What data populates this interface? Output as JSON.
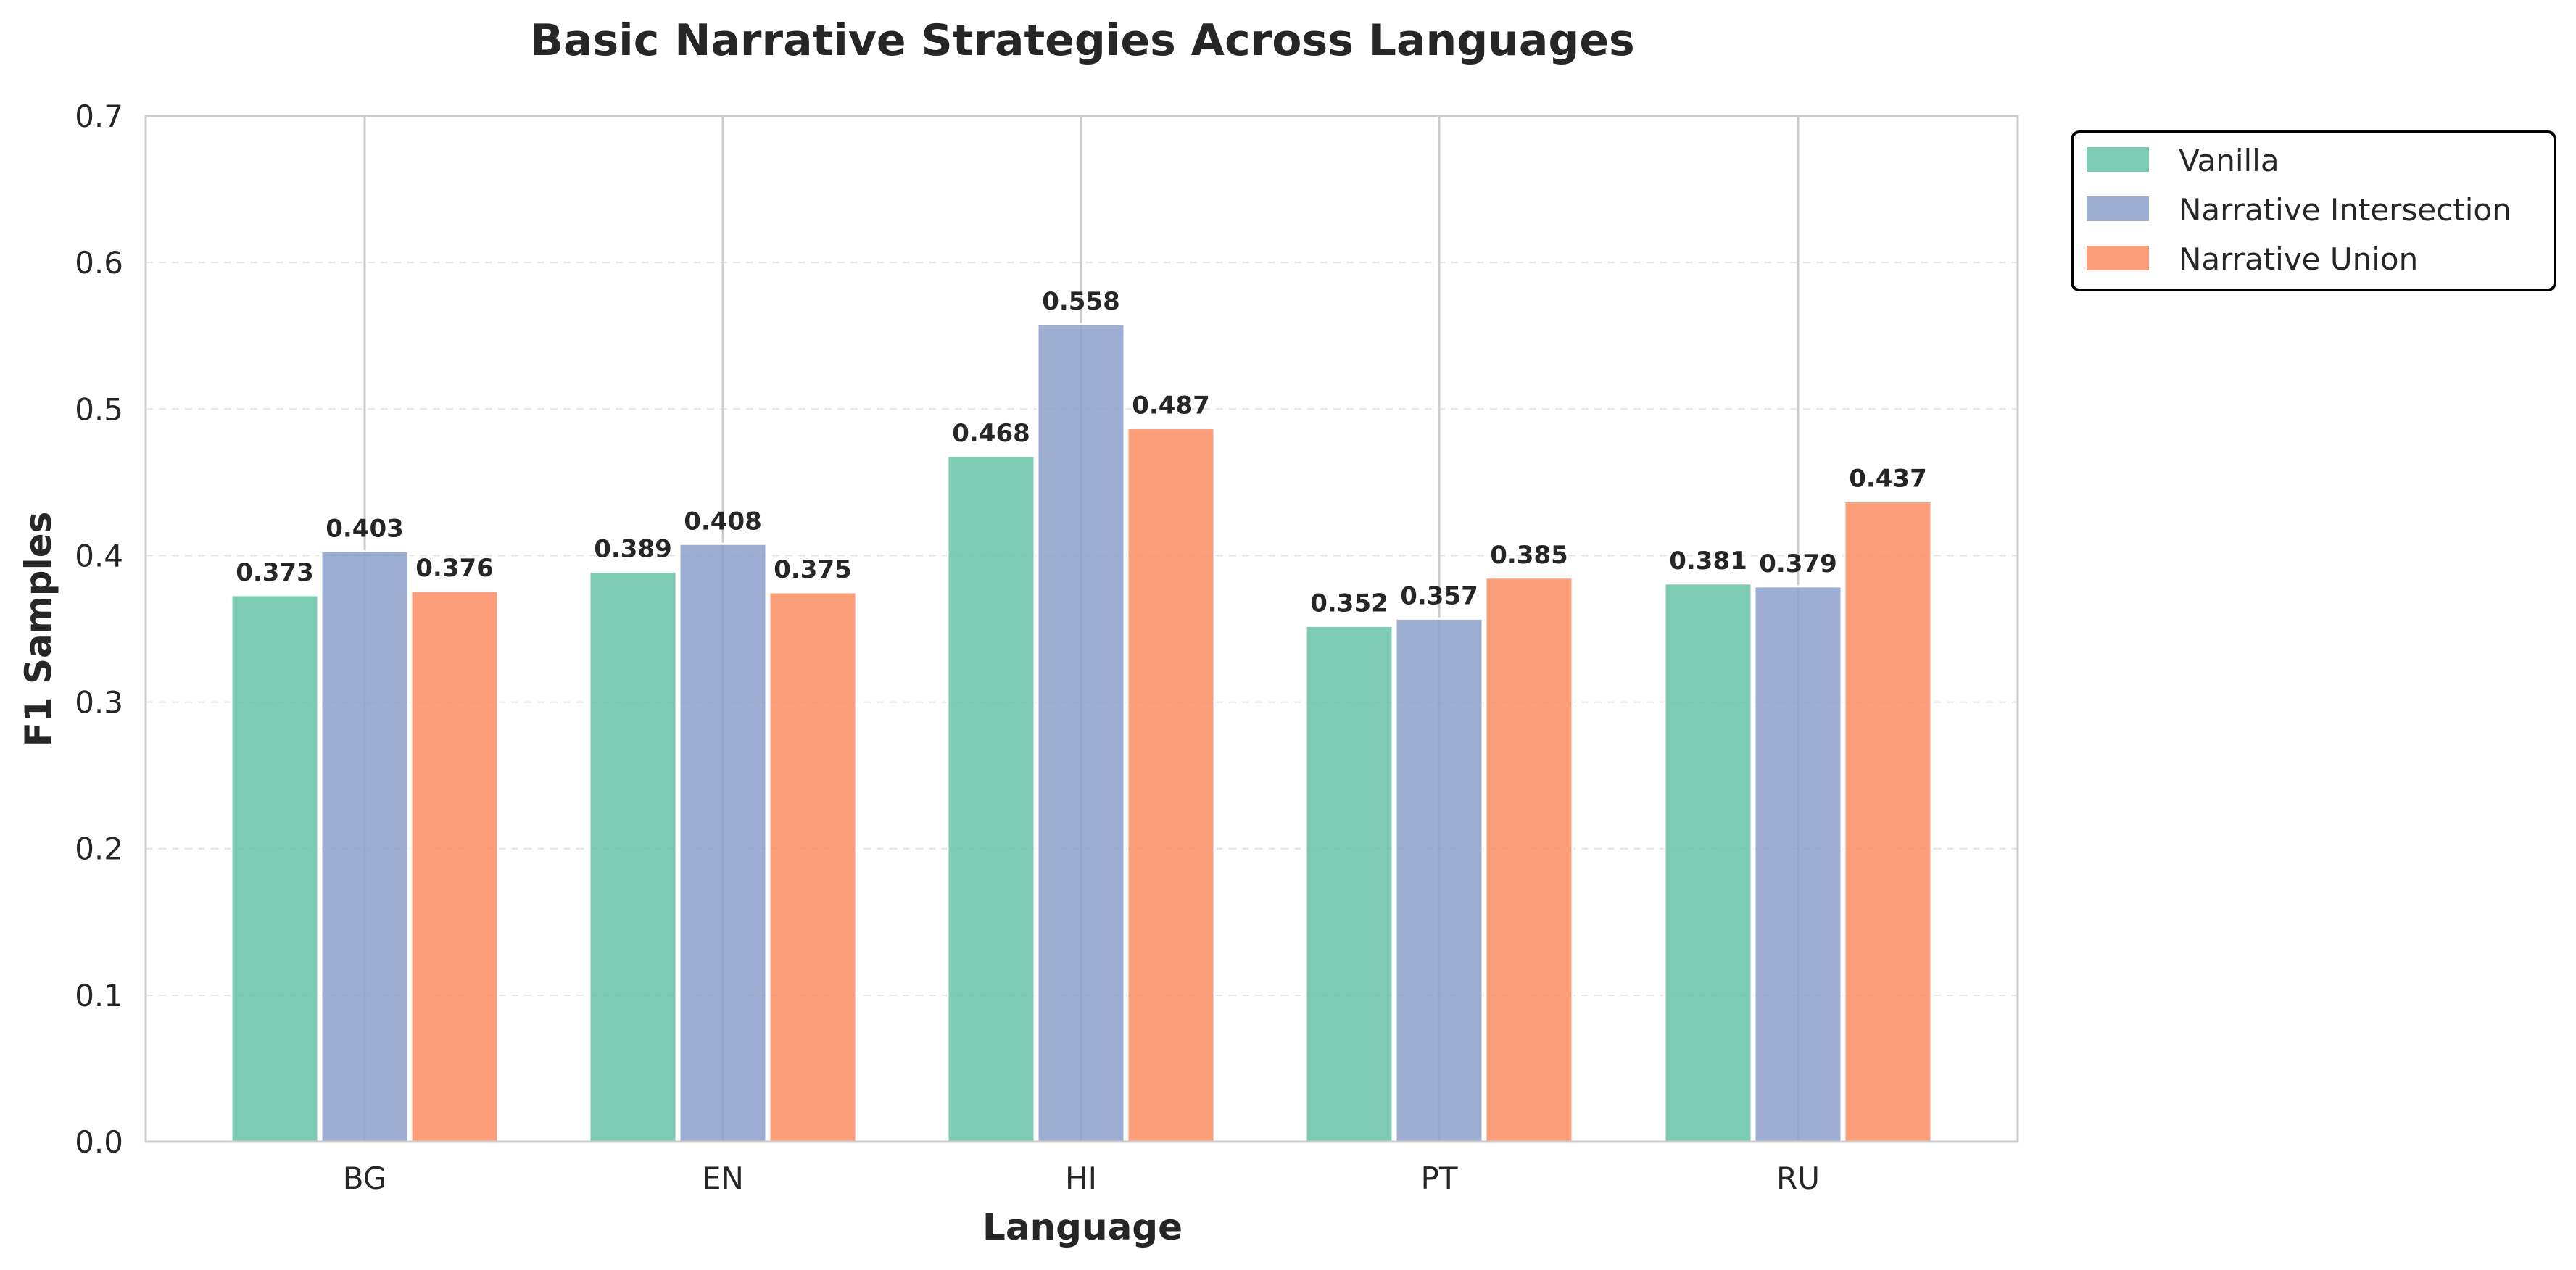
{
  "chart_data": {
    "type": "bar",
    "title": "Basic Narrative Strategies Across Languages",
    "xlabel": "Language",
    "ylabel": "F1 Samples",
    "categories": [
      "BG",
      "EN",
      "HI",
      "PT",
      "RU"
    ],
    "ylim": [
      0,
      0.7
    ],
    "yticks": [
      "0.0",
      "0.1",
      "0.2",
      "0.3",
      "0.4",
      "0.5",
      "0.6",
      "0.7"
    ],
    "grid": true,
    "legend_position": "outside top-right",
    "series": [
      {
        "name": "Vanilla",
        "color": "#66c2a5",
        "values": [
          0.373,
          0.389,
          0.468,
          0.352,
          0.381
        ],
        "labels": [
          "0.373",
          "0.389",
          "0.468",
          "0.352",
          "0.381"
        ]
      },
      {
        "name": "Narrative Intersection",
        "color": "#8da0cb",
        "values": [
          0.403,
          0.408,
          0.558,
          0.357,
          0.379
        ],
        "labels": [
          "0.403",
          "0.408",
          "0.558",
          "0.357",
          "0.379"
        ]
      },
      {
        "name": "Narrative Union",
        "color": "#fc8d62",
        "values": [
          0.376,
          0.375,
          0.487,
          0.385,
          0.437
        ],
        "labels": [
          "0.376",
          "0.375",
          "0.487",
          "0.385",
          "0.437"
        ]
      }
    ]
  }
}
